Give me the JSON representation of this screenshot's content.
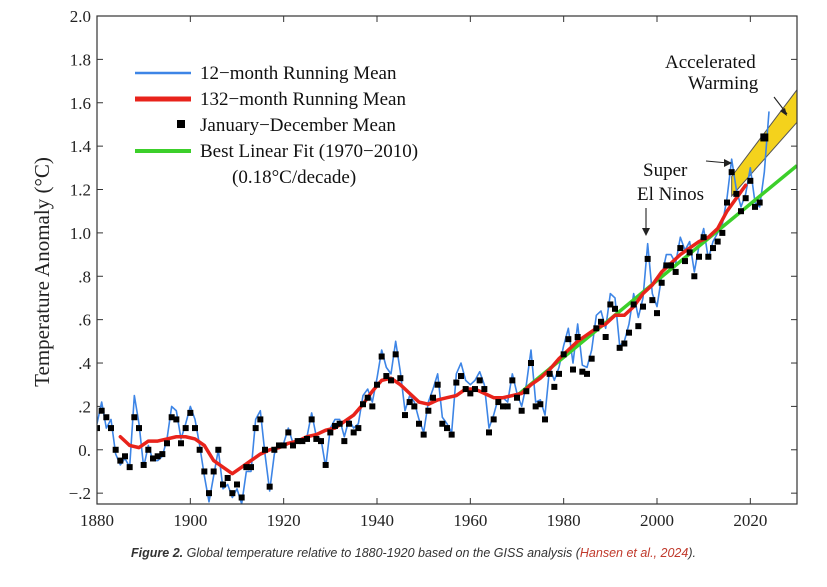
{
  "chart_data": {
    "type": "line",
    "xlabel": "",
    "ylabel": "Temperature Anomaly (°C)",
    "xlim": [
      1880,
      2030
    ],
    "ylim": [
      -0.25,
      2.0
    ],
    "x_ticks": [
      1880,
      1900,
      1920,
      1940,
      1960,
      1980,
      2000,
      2020
    ],
    "x_tick_labels": [
      "1880",
      "1900",
      "1920",
      "1940",
      "1960",
      "1980",
      "2000",
      "2020"
    ],
    "y_ticks": [
      -0.2,
      0.0,
      0.2,
      0.4,
      0.6,
      0.8,
      1.0,
      1.2,
      1.4,
      1.6,
      1.8,
      2.0
    ],
    "y_tick_labels": [
      "−.2",
      "0.",
      ".2",
      ".4",
      ".6",
      ".8",
      "1.0",
      "1.2",
      "1.4",
      "1.6",
      "1.8",
      "2.0"
    ],
    "colors": {
      "running12": "#3d85e6",
      "running132": "#e8231b",
      "annual": "#000000",
      "fit": "#3ccf2a",
      "accel_fill": "#f4d21c",
      "accel_edge": "#555555"
    },
    "series": [
      {
        "name": "12−month Running Mean",
        "x": [
          1880,
          1881,
          1882,
          1883,
          1884,
          1885,
          1886,
          1887,
          1888,
          1889,
          1890,
          1891,
          1892,
          1893,
          1894,
          1895,
          1896,
          1897,
          1898,
          1899,
          1900,
          1901,
          1902,
          1903,
          1904,
          1905,
          1906,
          1907,
          1908,
          1909,
          1910,
          1911,
          1912,
          1913,
          1914,
          1915,
          1916,
          1917,
          1918,
          1919,
          1920,
          1921,
          1922,
          1923,
          1924,
          1925,
          1926,
          1927,
          1928,
          1929,
          1930,
          1931,
          1932,
          1933,
          1934,
          1935,
          1936,
          1937,
          1938,
          1939,
          1940,
          1941,
          1942,
          1943,
          1944,
          1945,
          1946,
          1947,
          1948,
          1949,
          1950,
          1951,
          1952,
          1953,
          1954,
          1955,
          1956,
          1957,
          1958,
          1959,
          1960,
          1961,
          1962,
          1963,
          1964,
          1965,
          1966,
          1967,
          1968,
          1969,
          1970,
          1971,
          1972,
          1973,
          1974,
          1975,
          1976,
          1977,
          1978,
          1979,
          1980,
          1981,
          1982,
          1983,
          1984,
          1985,
          1986,
          1987,
          1988,
          1989,
          1990,
          1991,
          1992,
          1993,
          1994,
          1995,
          1996,
          1997,
          1998,
          1999,
          2000,
          2001,
          2002,
          2003,
          2004,
          2005,
          2006,
          2007,
          2008,
          2009,
          2010,
          2011,
          2012,
          2013,
          2014,
          2015,
          2016,
          2017,
          2018,
          2019,
          2020,
          2021,
          2022,
          2023,
          2024
        ],
        "values": [
          0.12,
          0.22,
          0.1,
          0.14,
          -0.02,
          -0.07,
          -0.04,
          -0.08,
          0.25,
          0.12,
          -0.08,
          0.02,
          -0.05,
          -0.05,
          -0.03,
          0.05,
          0.2,
          0.18,
          0.05,
          0.12,
          0.2,
          0.14,
          0.02,
          -0.12,
          -0.24,
          -0.12,
          0.0,
          -0.18,
          -0.16,
          -0.22,
          -0.18,
          -0.25,
          -0.1,
          -0.1,
          0.14,
          0.18,
          -0.02,
          -0.19,
          -0.02,
          0.03,
          0.03,
          0.1,
          0.03,
          0.05,
          0.05,
          0.06,
          0.17,
          0.06,
          0.05,
          -0.08,
          0.1,
          0.14,
          0.14,
          0.06,
          0.14,
          0.1,
          0.12,
          0.25,
          0.28,
          0.22,
          0.33,
          0.46,
          0.38,
          0.35,
          0.5,
          0.36,
          0.18,
          0.25,
          0.22,
          0.14,
          0.08,
          0.22,
          0.28,
          0.35,
          0.15,
          0.12,
          0.08,
          0.35,
          0.4,
          0.32,
          0.3,
          0.32,
          0.36,
          0.3,
          0.1,
          0.16,
          0.24,
          0.24,
          0.22,
          0.35,
          0.26,
          0.2,
          0.3,
          0.46,
          0.22,
          0.23,
          0.16,
          0.38,
          0.32,
          0.38,
          0.48,
          0.56,
          0.4,
          0.58,
          0.39,
          0.38,
          0.46,
          0.62,
          0.64,
          0.56,
          0.72,
          0.7,
          0.48,
          0.5,
          0.58,
          0.72,
          0.61,
          0.7,
          0.95,
          0.72,
          0.66,
          0.8,
          0.9,
          0.9,
          0.86,
          0.98,
          0.92,
          0.96,
          0.82,
          0.94,
          1.02,
          0.88,
          0.96,
          1.0,
          1.04,
          1.16,
          1.34,
          1.2,
          1.12,
          1.18,
          1.3,
          1.14,
          1.12,
          1.28,
          1.56
        ]
      },
      {
        "name": "132−month Running Mean",
        "x": [
          1885,
          1887,
          1889,
          1891,
          1893,
          1895,
          1897,
          1899,
          1901,
          1903,
          1905,
          1907,
          1909,
          1911,
          1913,
          1915,
          1917,
          1919,
          1921,
          1923,
          1925,
          1927,
          1929,
          1931,
          1933,
          1935,
          1937,
          1939,
          1941,
          1943,
          1945,
          1947,
          1949,
          1951,
          1953,
          1955,
          1957,
          1959,
          1961,
          1963,
          1965,
          1967,
          1969,
          1971,
          1973,
          1975,
          1977,
          1979,
          1981,
          1983,
          1985,
          1987,
          1989,
          1991,
          1993,
          1995,
          1997,
          1999,
          2001,
          2003,
          2005,
          2007,
          2009,
          2011,
          2013,
          2015,
          2017,
          2019
        ],
        "values": [
          0.06,
          0.02,
          0.01,
          0.04,
          0.04,
          0.05,
          0.06,
          0.06,
          0.05,
          0.02,
          -0.05,
          -0.08,
          -0.11,
          -0.08,
          -0.05,
          -0.02,
          0.0,
          0.01,
          0.03,
          0.04,
          0.06,
          0.07,
          0.09,
          0.1,
          0.13,
          0.16,
          0.21,
          0.27,
          0.32,
          0.33,
          0.3,
          0.26,
          0.22,
          0.21,
          0.23,
          0.24,
          0.25,
          0.28,
          0.28,
          0.26,
          0.24,
          0.24,
          0.25,
          0.26,
          0.3,
          0.33,
          0.37,
          0.42,
          0.46,
          0.5,
          0.53,
          0.56,
          0.58,
          0.62,
          0.62,
          0.66,
          0.72,
          0.76,
          0.82,
          0.86,
          0.9,
          0.93,
          0.96,
          0.98,
          1.02,
          1.1,
          1.16,
          1.22
        ]
      },
      {
        "name": "January−December Mean",
        "x": [
          1880,
          1881,
          1882,
          1883,
          1884,
          1885,
          1886,
          1887,
          1888,
          1889,
          1890,
          1891,
          1892,
          1893,
          1894,
          1895,
          1896,
          1897,
          1898,
          1899,
          1900,
          1901,
          1902,
          1903,
          1904,
          1905,
          1906,
          1907,
          1908,
          1909,
          1910,
          1911,
          1912,
          1913,
          1914,
          1915,
          1916,
          1917,
          1918,
          1919,
          1920,
          1921,
          1922,
          1923,
          1924,
          1925,
          1926,
          1927,
          1928,
          1929,
          1930,
          1931,
          1932,
          1933,
          1934,
          1935,
          1936,
          1937,
          1938,
          1939,
          1940,
          1941,
          1942,
          1943,
          1944,
          1945,
          1946,
          1947,
          1948,
          1949,
          1950,
          1951,
          1952,
          1953,
          1954,
          1955,
          1956,
          1957,
          1958,
          1959,
          1960,
          1961,
          1962,
          1963,
          1964,
          1965,
          1966,
          1967,
          1968,
          1969,
          1970,
          1971,
          1972,
          1973,
          1974,
          1975,
          1976,
          1977,
          1978,
          1979,
          1980,
          1981,
          1982,
          1983,
          1984,
          1985,
          1986,
          1987,
          1988,
          1989,
          1990,
          1991,
          1992,
          1993,
          1994,
          1995,
          1996,
          1997,
          1998,
          1999,
          2000,
          2001,
          2002,
          2003,
          2004,
          2005,
          2006,
          2007,
          2008,
          2009,
          2010,
          2011,
          2012,
          2013,
          2014,
          2015,
          2016,
          2017,
          2018,
          2019,
          2020,
          2021,
          2022,
          2023
        ],
        "values": [
          0.1,
          0.18,
          0.15,
          0.1,
          0.0,
          -0.05,
          -0.03,
          -0.08,
          0.15,
          0.1,
          -0.07,
          0.0,
          -0.04,
          -0.03,
          -0.02,
          0.03,
          0.15,
          0.14,
          0.03,
          0.1,
          0.17,
          0.1,
          0.0,
          -0.1,
          -0.2,
          -0.1,
          0.0,
          -0.16,
          -0.13,
          -0.2,
          -0.16,
          -0.22,
          -0.08,
          -0.08,
          0.1,
          0.14,
          0.0,
          -0.17,
          0.0,
          0.02,
          0.02,
          0.08,
          0.02,
          0.04,
          0.04,
          0.05,
          0.14,
          0.05,
          0.04,
          -0.07,
          0.08,
          0.11,
          0.12,
          0.04,
          0.12,
          0.08,
          0.1,
          0.21,
          0.24,
          0.2,
          0.3,
          0.43,
          0.34,
          0.32,
          0.44,
          0.33,
          0.16,
          0.22,
          0.2,
          0.12,
          0.07,
          0.18,
          0.24,
          0.3,
          0.12,
          0.1,
          0.07,
          0.31,
          0.34,
          0.28,
          0.26,
          0.28,
          0.32,
          0.28,
          0.08,
          0.14,
          0.22,
          0.2,
          0.2,
          0.32,
          0.24,
          0.18,
          0.27,
          0.4,
          0.2,
          0.21,
          0.14,
          0.35,
          0.29,
          0.35,
          0.44,
          0.51,
          0.37,
          0.52,
          0.36,
          0.35,
          0.42,
          0.56,
          0.59,
          0.52,
          0.67,
          0.65,
          0.47,
          0.49,
          0.54,
          0.67,
          0.57,
          0.66,
          0.88,
          0.69,
          0.63,
          0.77,
          0.85,
          0.85,
          0.82,
          0.93,
          0.87,
          0.91,
          0.8,
          0.89,
          0.98,
          0.89,
          0.93,
          0.96,
          1.0,
          1.14,
          1.28,
          1.18,
          1.1,
          1.16,
          1.24,
          1.12,
          1.14,
          1.44
        ]
      },
      {
        "name": "Best Linear Fit (1970−2010)",
        "x": [
          1970,
          2030
        ],
        "values": [
          0.25,
          1.31
        ]
      }
    ],
    "accelerated_band": {
      "x": [
        2016,
        2030
      ],
      "lower": [
        1.17,
        1.51
      ],
      "upper": [
        1.26,
        1.66
      ]
    },
    "legend": {
      "placement": "top-left",
      "entries": [
        "12−month Running Mean",
        "132−month Running Mean",
        "January−December Mean",
        "Best Linear Fit (1970−2010)"
      ],
      "fit_note": "(0.18°C/decade)"
    },
    "annotations": {
      "accelerated_line1": "Accelerated",
      "accelerated_line2": "Warming",
      "super_line1": "Super",
      "super_line2": "El Ninos"
    }
  },
  "caption": {
    "label": "Figure 2.",
    "text": " Global temperature relative to 1880-1920 based on the GISS analysis (",
    "citation": "Hansen et al., 2024",
    "end": ")."
  }
}
